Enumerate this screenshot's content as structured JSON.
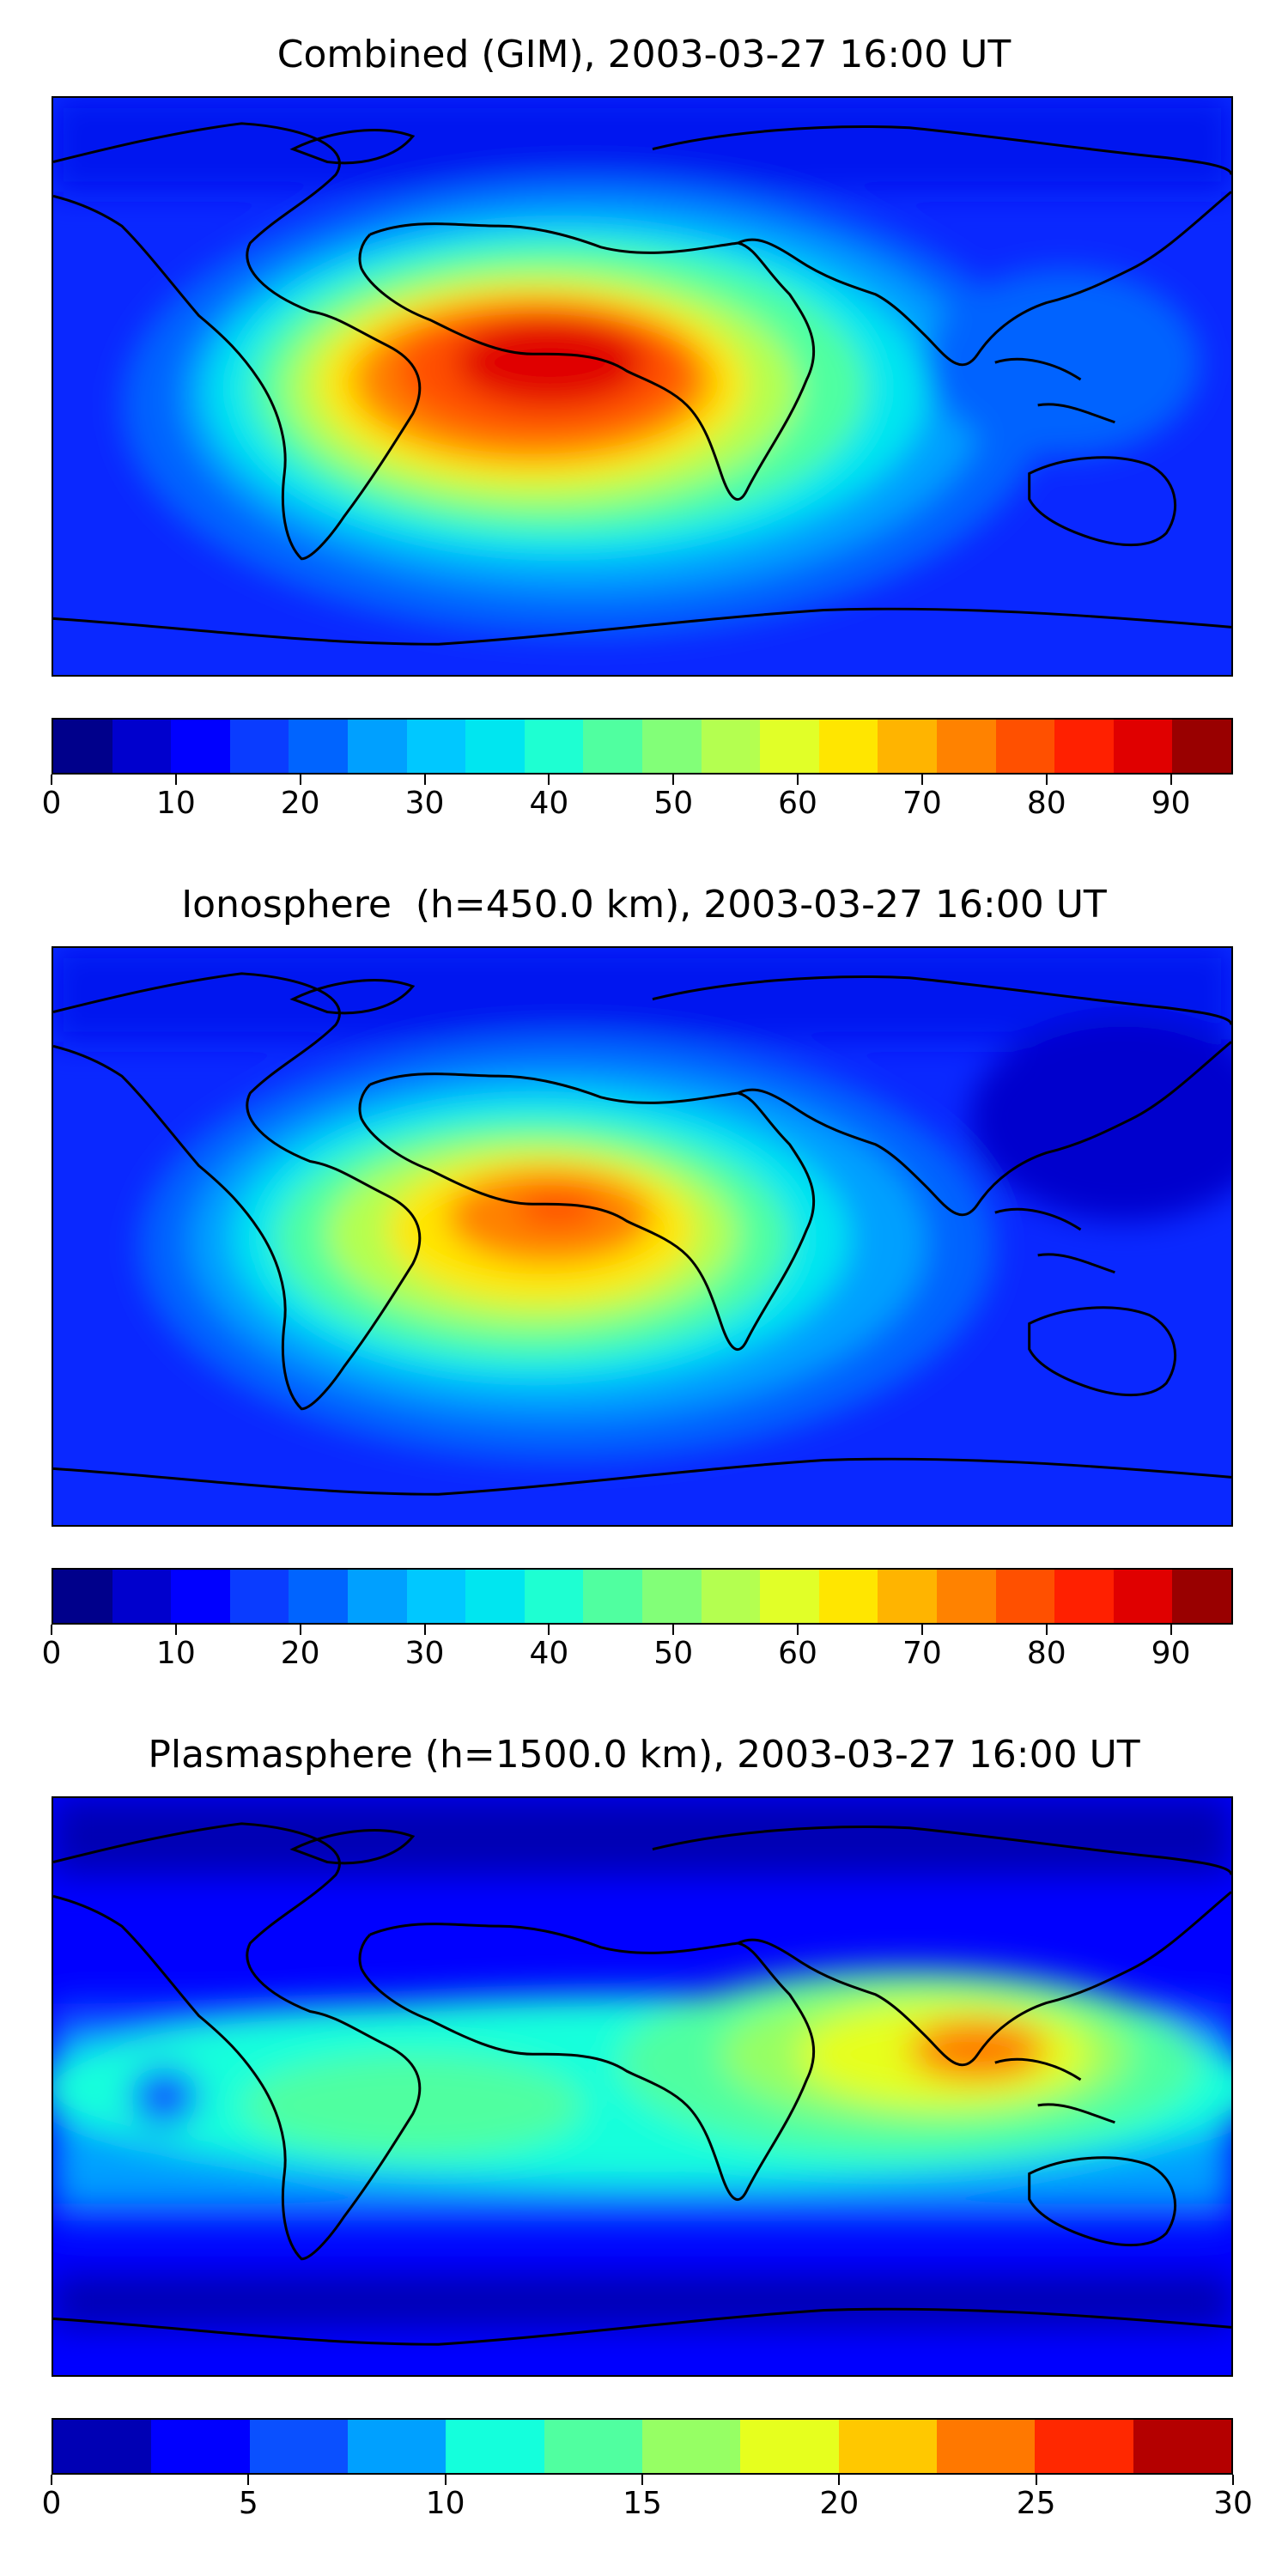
{
  "panels": [
    {
      "title": "Combined (GIM), 2003-03-27 16:00 UT",
      "colorbar": {
        "min": 0,
        "max": 95,
        "step": 5,
        "ticks": [
          "0",
          "10",
          "20",
          "30",
          "40",
          "50",
          "60",
          "70",
          "80",
          "90"
        ],
        "tick_values": [
          0,
          10,
          20,
          30,
          40,
          50,
          60,
          70,
          80,
          90
        ],
        "colors": [
          "#00008b",
          "#0000cd",
          "#0000ff",
          "#0a3cff",
          "#0064ff",
          "#00a0ff",
          "#00c8ff",
          "#00e6f0",
          "#1effd2",
          "#50ffa0",
          "#82ff78",
          "#b4ff50",
          "#e1ff28",
          "#ffe600",
          "#ffb400",
          "#ff8200",
          "#ff5000",
          "#ff2000",
          "#e00000",
          "#990000"
        ]
      }
    },
    {
      "title": "Ionosphere  (h=450.0 km), 2003-03-27 16:00 UT",
      "colorbar": {
        "min": 0,
        "max": 95,
        "step": 5,
        "ticks": [
          "0",
          "10",
          "20",
          "30",
          "40",
          "50",
          "60",
          "70",
          "80",
          "90"
        ],
        "tick_values": [
          0,
          10,
          20,
          30,
          40,
          50,
          60,
          70,
          80,
          90
        ],
        "colors": [
          "#00008b",
          "#0000cd",
          "#0000ff",
          "#0a3cff",
          "#0064ff",
          "#00a0ff",
          "#00c8ff",
          "#00e6f0",
          "#1effd2",
          "#50ffa0",
          "#82ff78",
          "#b4ff50",
          "#e1ff28",
          "#ffe600",
          "#ffb400",
          "#ff8200",
          "#ff5000",
          "#ff2000",
          "#e00000",
          "#990000"
        ]
      }
    },
    {
      "title": "Plasmasphere (h=1500.0 km), 2003-03-27 16:00 UT",
      "colorbar": {
        "min": 0,
        "max": 30,
        "step": 2.5,
        "ticks": [
          "0",
          "5",
          "10",
          "15",
          "20",
          "25",
          "30"
        ],
        "tick_values": [
          0,
          5,
          10,
          15,
          20,
          25,
          30
        ],
        "colors": [
          "#0000b4",
          "#0000ff",
          "#0a50ff",
          "#00a0ff",
          "#14ffdc",
          "#50ffa0",
          "#96ff64",
          "#e6ff1e",
          "#ffc800",
          "#ff7800",
          "#ff2800",
          "#b40000"
        ]
      }
    }
  ]
}
